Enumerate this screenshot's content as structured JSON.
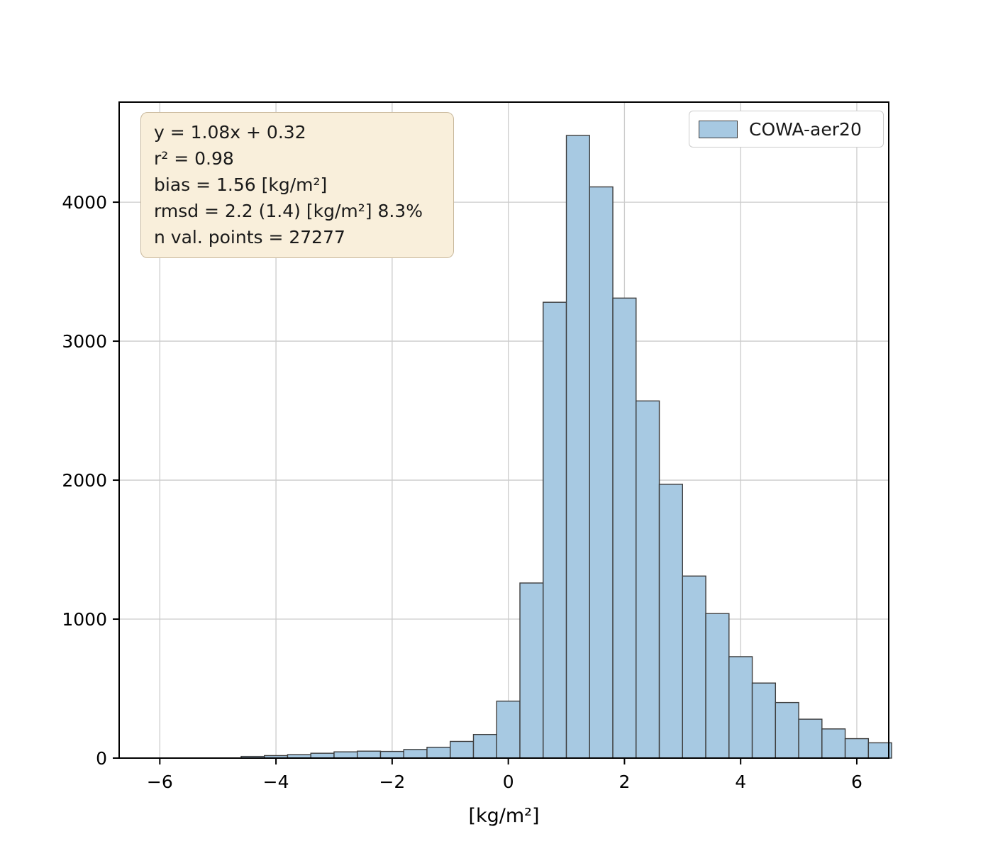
{
  "chart_data": {
    "type": "bar",
    "variant": "histogram",
    "title": "",
    "xlabel": "[kg/m²]",
    "ylabel": "",
    "xlim": [
      -6.7,
      6.55
    ],
    "ylim": [
      0,
      4720
    ],
    "grid": true,
    "xticks": {
      "values": [
        -6,
        -4,
        -2,
        0,
        2,
        4,
        6
      ],
      "labels": [
        "−6",
        "−4",
        "−2",
        "0",
        "2",
        "4",
        "6"
      ]
    },
    "yticks": {
      "values": [
        0,
        1000,
        2000,
        3000,
        4000
      ],
      "labels": [
        "0",
        "1000",
        "2000",
        "3000",
        "4000"
      ]
    },
    "bins": {
      "start": -4.6,
      "width": 0.4,
      "counts": [
        12,
        18,
        25,
        35,
        45,
        50,
        48,
        62,
        78,
        120,
        170,
        410,
        1260,
        3280,
        4480,
        4110,
        3310,
        2570,
        1970,
        1310,
        1040,
        730,
        540,
        400,
        280,
        210,
        140,
        110
      ]
    },
    "legend": {
      "position": "upper right",
      "label": "COWA-aer20"
    },
    "stats": {
      "lines": [
        "y = 1.08x + 0.32",
        "r² = 0.98",
        "bias = 1.56 [kg/m²]",
        "rmsd = 2.2 (1.4) [kg/m²] 8.3%",
        "n val. points = 27277"
      ]
    },
    "colors": {
      "bar_fill": "#a7c9e2",
      "bar_edge": "#3d3d3d",
      "grid": "#cccccc",
      "spine": "#000000",
      "text": "#000000",
      "stats_bg": "#f9efdb",
      "stats_border": "#c9b99d",
      "legend_border": "#cccccc"
    }
  }
}
